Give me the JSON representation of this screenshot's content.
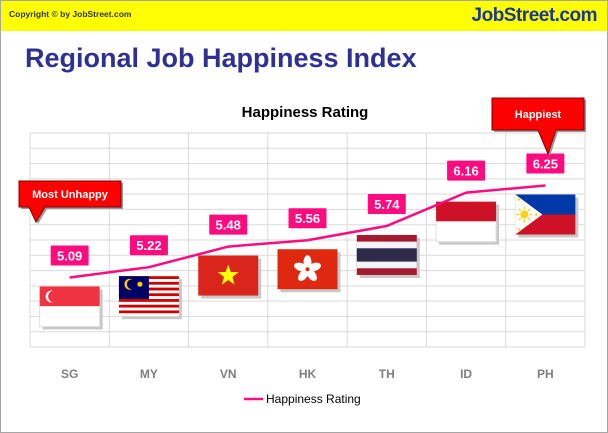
{
  "header": {
    "copyright": "Copyright © by JobStreet.com",
    "brand": "JobStreet.com"
  },
  "page_title": "Regional Job Happiness Index",
  "callouts": {
    "lowest": "Most Unhappy",
    "highest": "Happiest"
  },
  "colors": {
    "line": "#ff0b80",
    "label_bg": "#ff0b80",
    "callout_bg": "#ff0000",
    "topbar": "#ffff00",
    "title": "#2e3192"
  },
  "flags": [
    "singapore-flag",
    "malaysia-flag",
    "vietnam-flag",
    "hong-kong-flag",
    "thailand-flag",
    "indonesia-flag",
    "philippines-flag"
  ],
  "chart_data": {
    "type": "line",
    "title": "Happiness Rating",
    "categories": [
      "SG",
      "MY",
      "VN",
      "HK",
      "TH",
      "ID",
      "PH"
    ],
    "series": [
      {
        "name": "Happiness Rating",
        "values": [
          5.09,
          5.22,
          5.48,
          5.56,
          5.74,
          6.16,
          6.25
        ]
      }
    ],
    "data_labels": [
      "5.09",
      "5.22",
      "5.48",
      "5.56",
      "5.74",
      "6.16",
      "6.25"
    ],
    "grid": true,
    "legend": "bottom"
  }
}
